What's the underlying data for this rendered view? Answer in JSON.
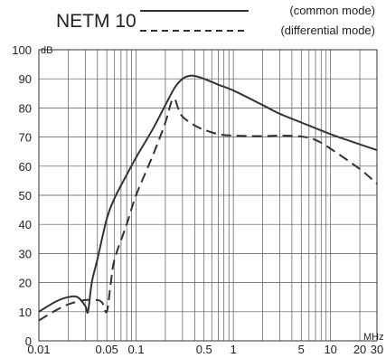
{
  "chart_data": {
    "type": "line",
    "title": "NETM 10",
    "ylabel": "dB",
    "xlabel": "MHz",
    "x_scale": "log",
    "xlim": [
      0.01,
      30
    ],
    "ylim": [
      0,
      100
    ],
    "grid": true,
    "legend_placement": "top-right",
    "x_tick_labels": [
      {
        "value": 0.01,
        "label": "0.01"
      },
      {
        "value": 0.05,
        "label": "0.05"
      },
      {
        "value": 0.1,
        "label": "0.1"
      },
      {
        "value": 0.5,
        "label": "0.5"
      },
      {
        "value": 1,
        "label": "1"
      },
      {
        "value": 5,
        "label": "5"
      },
      {
        "value": 10,
        "label": "10"
      },
      {
        "value": 20,
        "label": "20"
      },
      {
        "value": 30,
        "label": "30"
      }
    ],
    "y_ticks": [
      0,
      10,
      20,
      30,
      40,
      50,
      60,
      70,
      80,
      90,
      100
    ],
    "series": [
      {
        "name": "(common mode)",
        "style": "solid",
        "color": "#333333",
        "x": [
          0.01,
          0.015,
          0.02,
          0.025,
          0.03,
          0.032,
          0.035,
          0.04,
          0.05,
          0.06,
          0.08,
          0.1,
          0.15,
          0.2,
          0.25,
          0.3,
          0.35,
          0.4,
          0.5,
          0.7,
          1,
          2,
          3,
          5,
          10,
          20,
          30
        ],
        "y": [
          10,
          13.5,
          15,
          15,
          12,
          10,
          20,
          28,
          42,
          49,
          57,
          63,
          73,
          81,
          87,
          90,
          91,
          91,
          90,
          88,
          86,
          81,
          78,
          75,
          71,
          67.5,
          65.5
        ]
      },
      {
        "name": "(differential mode)",
        "style": "dashed",
        "color": "#333333",
        "x": [
          0.01,
          0.015,
          0.02,
          0.025,
          0.03,
          0.04,
          0.045,
          0.05,
          0.055,
          0.06,
          0.08,
          0.1,
          0.15,
          0.2,
          0.23,
          0.25,
          0.27,
          0.3,
          0.4,
          0.5,
          0.7,
          1,
          2,
          3,
          5,
          7,
          10,
          20,
          30
        ],
        "y": [
          7,
          10.5,
          12.5,
          13.5,
          14,
          14,
          13,
          10,
          20,
          28,
          40,
          50,
          64,
          75,
          82,
          83,
          80,
          77,
          74,
          72.5,
          71,
          70.5,
          70.3,
          70.5,
          70.2,
          69,
          66,
          59,
          54
        ]
      }
    ]
  }
}
